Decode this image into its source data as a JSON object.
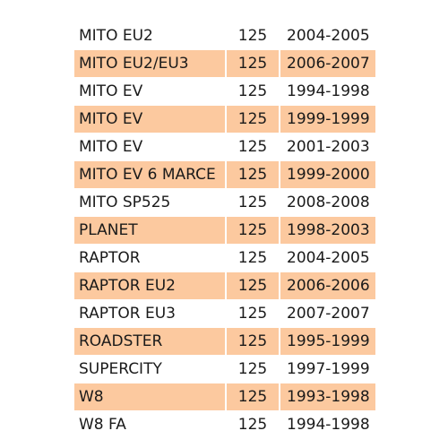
{
  "colors": {
    "row_shaded": "#fcc99f",
    "row_plain": "#ffffff",
    "text": "#1a1a1a"
  },
  "rows": [
    {
      "model": "MITO EU2",
      "cc": "125",
      "years": "2004-2005"
    },
    {
      "model": "MITO EU2/EU3",
      "cc": "125",
      "years": "2006-2007"
    },
    {
      "model": "MITO EV",
      "cc": "125",
      "years": "1994-1998"
    },
    {
      "model": "MITO EV",
      "cc": "125",
      "years": "1999-1999"
    },
    {
      "model": "MITO EV",
      "cc": "125",
      "years": "2001-2003"
    },
    {
      "model": "MITO EV 6 MARCE",
      "cc": "125",
      "years": "1999-2000"
    },
    {
      "model": "MITO SP525",
      "cc": "125",
      "years": "2008-2008"
    },
    {
      "model": "PLANET",
      "cc": "125",
      "years": "1998-2003"
    },
    {
      "model": "RAPTOR",
      "cc": "125",
      "years": "2004-2005"
    },
    {
      "model": "RAPTOR EU2",
      "cc": "125",
      "years": "2006-2006"
    },
    {
      "model": "RAPTOR EU3",
      "cc": "125",
      "years": "2007-2007"
    },
    {
      "model": "ROADSTER",
      "cc": "125",
      "years": "1995-1999"
    },
    {
      "model": "SUPERCITY",
      "cc": "125",
      "years": "1997-1999"
    },
    {
      "model": "W8",
      "cc": "125",
      "years": "1993-1998"
    },
    {
      "model": "W8 FA",
      "cc": "125",
      "years": "1994-1998"
    }
  ]
}
